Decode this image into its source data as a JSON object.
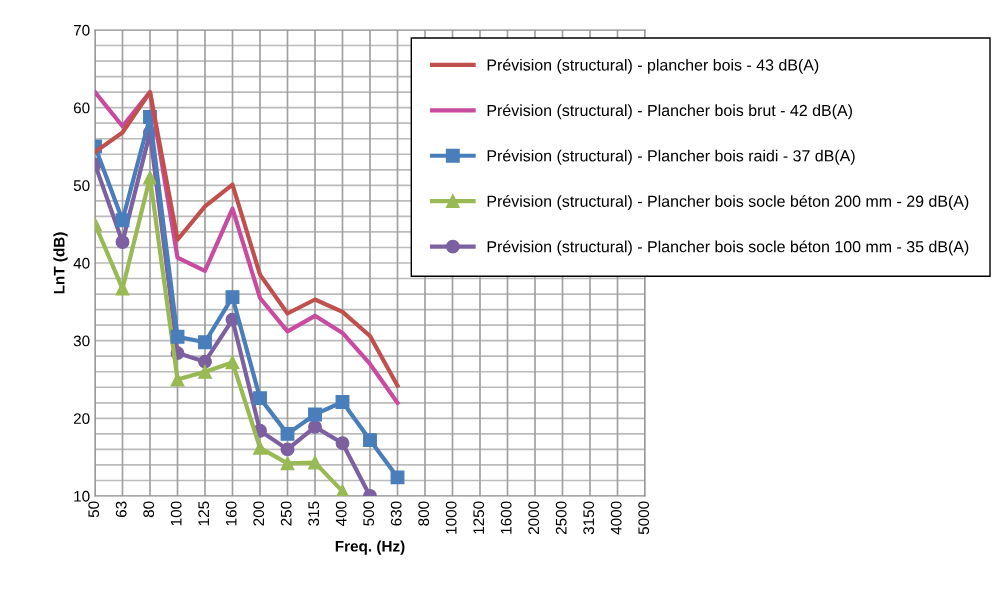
{
  "chart_data": {
    "type": "line",
    "xlabel": "Freq. (Hz)",
    "ylabel": "LnT (dB)",
    "categories": [
      "50",
      "63",
      "80",
      "100",
      "125",
      "160",
      "200",
      "250",
      "315",
      "400",
      "500",
      "630",
      "800",
      "1000",
      "1250",
      "1600",
      "2000",
      "2500",
      "3150",
      "4000",
      "5000"
    ],
    "ylim": [
      10,
      70
    ],
    "yticks": [
      10,
      20,
      30,
      40,
      50,
      60,
      70
    ],
    "grid": true,
    "legend": "top right",
    "series": [
      {
        "name": "Prévision (structural) - plancher bois - 43 dB(A)",
        "color": "#c0504d",
        "marker": "none",
        "values": [
          54.3,
          56.8,
          62,
          43,
          47.3,
          50.1,
          38.5,
          33.5,
          35.3,
          33.7,
          30.6,
          24.2,
          null,
          null,
          null,
          null,
          null,
          null,
          null,
          null,
          null
        ]
      },
      {
        "name": "Prévision (structural) - Plancher bois brut - 42 dB(A)",
        "color": "#c84ba0",
        "marker": "none",
        "values": [
          62,
          57.6,
          62,
          40.7,
          39,
          47,
          35.5,
          31.2,
          33.2,
          31,
          27,
          22,
          null,
          null,
          null,
          null,
          null,
          null,
          null,
          null,
          null
        ]
      },
      {
        "name": "Prévision (structural) - Plancher bois raidi - 37 dB(A)",
        "color": "#4a7ebb",
        "marker": "square",
        "values": [
          55,
          45.5,
          58.8,
          30.5,
          29.8,
          35.6,
          22.6,
          18,
          20.5,
          22.1,
          17.2,
          12.4,
          null,
          null,
          null,
          null,
          null,
          null,
          null,
          null,
          null
        ]
      },
      {
        "name": "Prévision (structural) - Plancher bois socle béton 200 mm - 29 dB(A)",
        "color": "#98b954",
        "marker": "triangle",
        "values": [
          45,
          36.7,
          51,
          25,
          26,
          27.2,
          16.2,
          14.2,
          14.3,
          10.6,
          null,
          null,
          null,
          null,
          null,
          null,
          null,
          null,
          null,
          null,
          null
        ]
      },
      {
        "name": "Prévision (structural) - Plancher bois socle béton 100 mm - 35 dB(A)",
        "color": "#7d60a0",
        "marker": "circle",
        "values": [
          52.7,
          42.7,
          56.8,
          28.4,
          27.3,
          32.7,
          18.4,
          16,
          18.9,
          16.8,
          10,
          null,
          null,
          null,
          null,
          null,
          null,
          null,
          null,
          null,
          null
        ]
      }
    ]
  }
}
